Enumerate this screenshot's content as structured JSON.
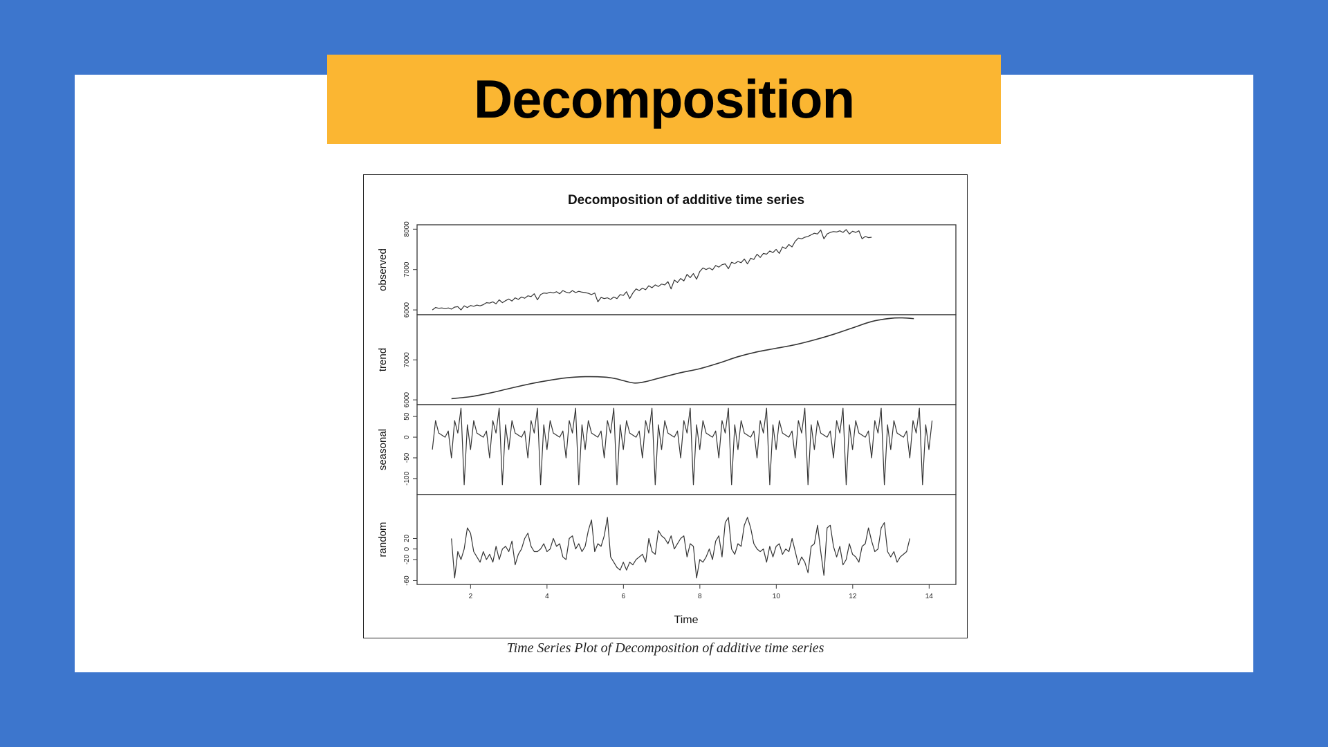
{
  "slide": {
    "title": "Decomposition",
    "caption": "Time Series Plot of Decomposition of additive time series"
  },
  "colors": {
    "background": "#3d76cd",
    "card": "#ffffff",
    "banner": "#fbb632",
    "line": "#333333"
  },
  "chart_data": {
    "type": "line",
    "title": "Decomposition of additive time series",
    "xlabel": "Time",
    "xlim": [
      0.6,
      14.7
    ],
    "xticks": [
      2,
      4,
      6,
      8,
      10,
      12,
      14
    ],
    "grid": false,
    "legend": "none",
    "panels": [
      {
        "name": "observed",
        "ylabel": "observed",
        "ylim": [
          5950,
          8040
        ],
        "yticks": [
          6000,
          7000,
          8000
        ],
        "x_start": 1.0,
        "x_step": 0.0833,
        "values": [
          6000,
          6060,
          6040,
          6050,
          6030,
          6050,
          6020,
          6070,
          6080,
          6000,
          6100,
          6060,
          6110,
          6090,
          6120,
          6100,
          6130,
          6180,
          6170,
          6200,
          6150,
          6250,
          6180,
          6230,
          6270,
          6220,
          6300,
          6260,
          6320,
          6290,
          6350,
          6330,
          6400,
          6250,
          6380,
          6420,
          6410,
          6440,
          6420,
          6450,
          6400,
          6480,
          6440,
          6420,
          6480,
          6430,
          6460,
          6440,
          6430,
          6410,
          6380,
          6420,
          6200,
          6310,
          6280,
          6300,
          6260,
          6320,
          6280,
          6380,
          6360,
          6450,
          6280,
          6420,
          6520,
          6480,
          6540,
          6500,
          6600,
          6550,
          6620,
          6580,
          6640,
          6620,
          6700,
          6520,
          6740,
          6680,
          6780,
          6720,
          6880,
          6800,
          6900,
          6760,
          6950,
          7040,
          7000,
          7040,
          6990,
          7100,
          7060,
          7120,
          7140,
          7020,
          7180,
          7150,
          7200,
          7170,
          7260,
          7140,
          7280,
          7250,
          7380,
          7300,
          7400,
          7380,
          7460,
          7420,
          7500,
          7400,
          7560,
          7520,
          7620,
          7560,
          7700,
          7780,
          7760,
          7800,
          7820,
          7860,
          7900,
          7880,
          7980,
          7760,
          7880,
          7920,
          7940,
          7930,
          7960,
          7920,
          7990,
          7880,
          7950,
          7920,
          7960,
          7760,
          7820,
          7790,
          7800
        ],
        "stroke_width": 1.2
      },
      {
        "name": "trend",
        "ylabel": "trend",
        "ylim": [
          5950,
          8060
        ],
        "yticks": [
          6000,
          7000
        ],
        "x": [
          1.5,
          2.0,
          2.5,
          3.0,
          3.5,
          4.0,
          4.5,
          5.0,
          5.5,
          5.8,
          6.0,
          6.3,
          6.6,
          7.0,
          7.5,
          8.0,
          8.5,
          9.0,
          9.5,
          10.0,
          10.5,
          11.0,
          11.5,
          12.0,
          12.5,
          13.0,
          13.3,
          13.6
        ],
        "values": [
          6030,
          6080,
          6170,
          6280,
          6390,
          6480,
          6550,
          6580,
          6570,
          6530,
          6480,
          6420,
          6460,
          6560,
          6680,
          6780,
          6920,
          7080,
          7200,
          7290,
          7380,
          7500,
          7640,
          7800,
          7960,
          8040,
          8050,
          8030
        ],
        "stroke_width": 1.6
      },
      {
        "name": "seasonal",
        "ylabel": "seasonal",
        "ylim": [
          -132,
          72
        ],
        "yticks": [
          50,
          0,
          -50,
          -100
        ],
        "period": 12,
        "x_start": 1.0,
        "x_step": 0.0833,
        "pattern": [
          -30,
          40,
          10,
          5,
          0,
          15,
          -50,
          40,
          10,
          70,
          -115,
          30
        ],
        "stroke_width": 1.2
      },
      {
        "name": "random",
        "ylabel": "random",
        "ylim": [
          -62,
          98
        ],
        "yticks": [
          20,
          0,
          -20,
          -60
        ],
        "x_start": 1.5,
        "x_step": 0.0833,
        "values": [
          20,
          -55,
          -5,
          -20,
          0,
          40,
          30,
          -5,
          -15,
          -25,
          -5,
          -20,
          -10,
          -25,
          5,
          -20,
          0,
          5,
          -5,
          15,
          -30,
          -10,
          0,
          20,
          30,
          5,
          -5,
          -5,
          0,
          10,
          -5,
          0,
          20,
          5,
          10,
          -15,
          -20,
          20,
          25,
          0,
          10,
          -5,
          5,
          35,
          55,
          -5,
          10,
          5,
          25,
          60,
          -15,
          -25,
          -35,
          -40,
          -25,
          -40,
          -25,
          -30,
          -20,
          -15,
          -10,
          -25,
          20,
          -5,
          -10,
          35,
          25,
          20,
          10,
          25,
          0,
          10,
          20,
          25,
          -15,
          10,
          5,
          -55,
          -20,
          -25,
          -15,
          0,
          -20,
          15,
          25,
          -15,
          50,
          60,
          0,
          -10,
          10,
          5,
          45,
          60,
          40,
          10,
          0,
          -5,
          0,
          -25,
          5,
          -15,
          5,
          10,
          -10,
          0,
          -5,
          20,
          -5,
          -30,
          -15,
          -25,
          -45,
          5,
          10,
          45,
          -5,
          -50,
          40,
          45,
          5,
          -15,
          5,
          -30,
          -20,
          10,
          -10,
          -15,
          -25,
          5,
          10,
          40,
          15,
          -5,
          0,
          40,
          50,
          -5,
          -15,
          -5,
          -25,
          -15,
          -10,
          -5,
          20
        ],
        "stroke_width": 1.2
      }
    ]
  }
}
